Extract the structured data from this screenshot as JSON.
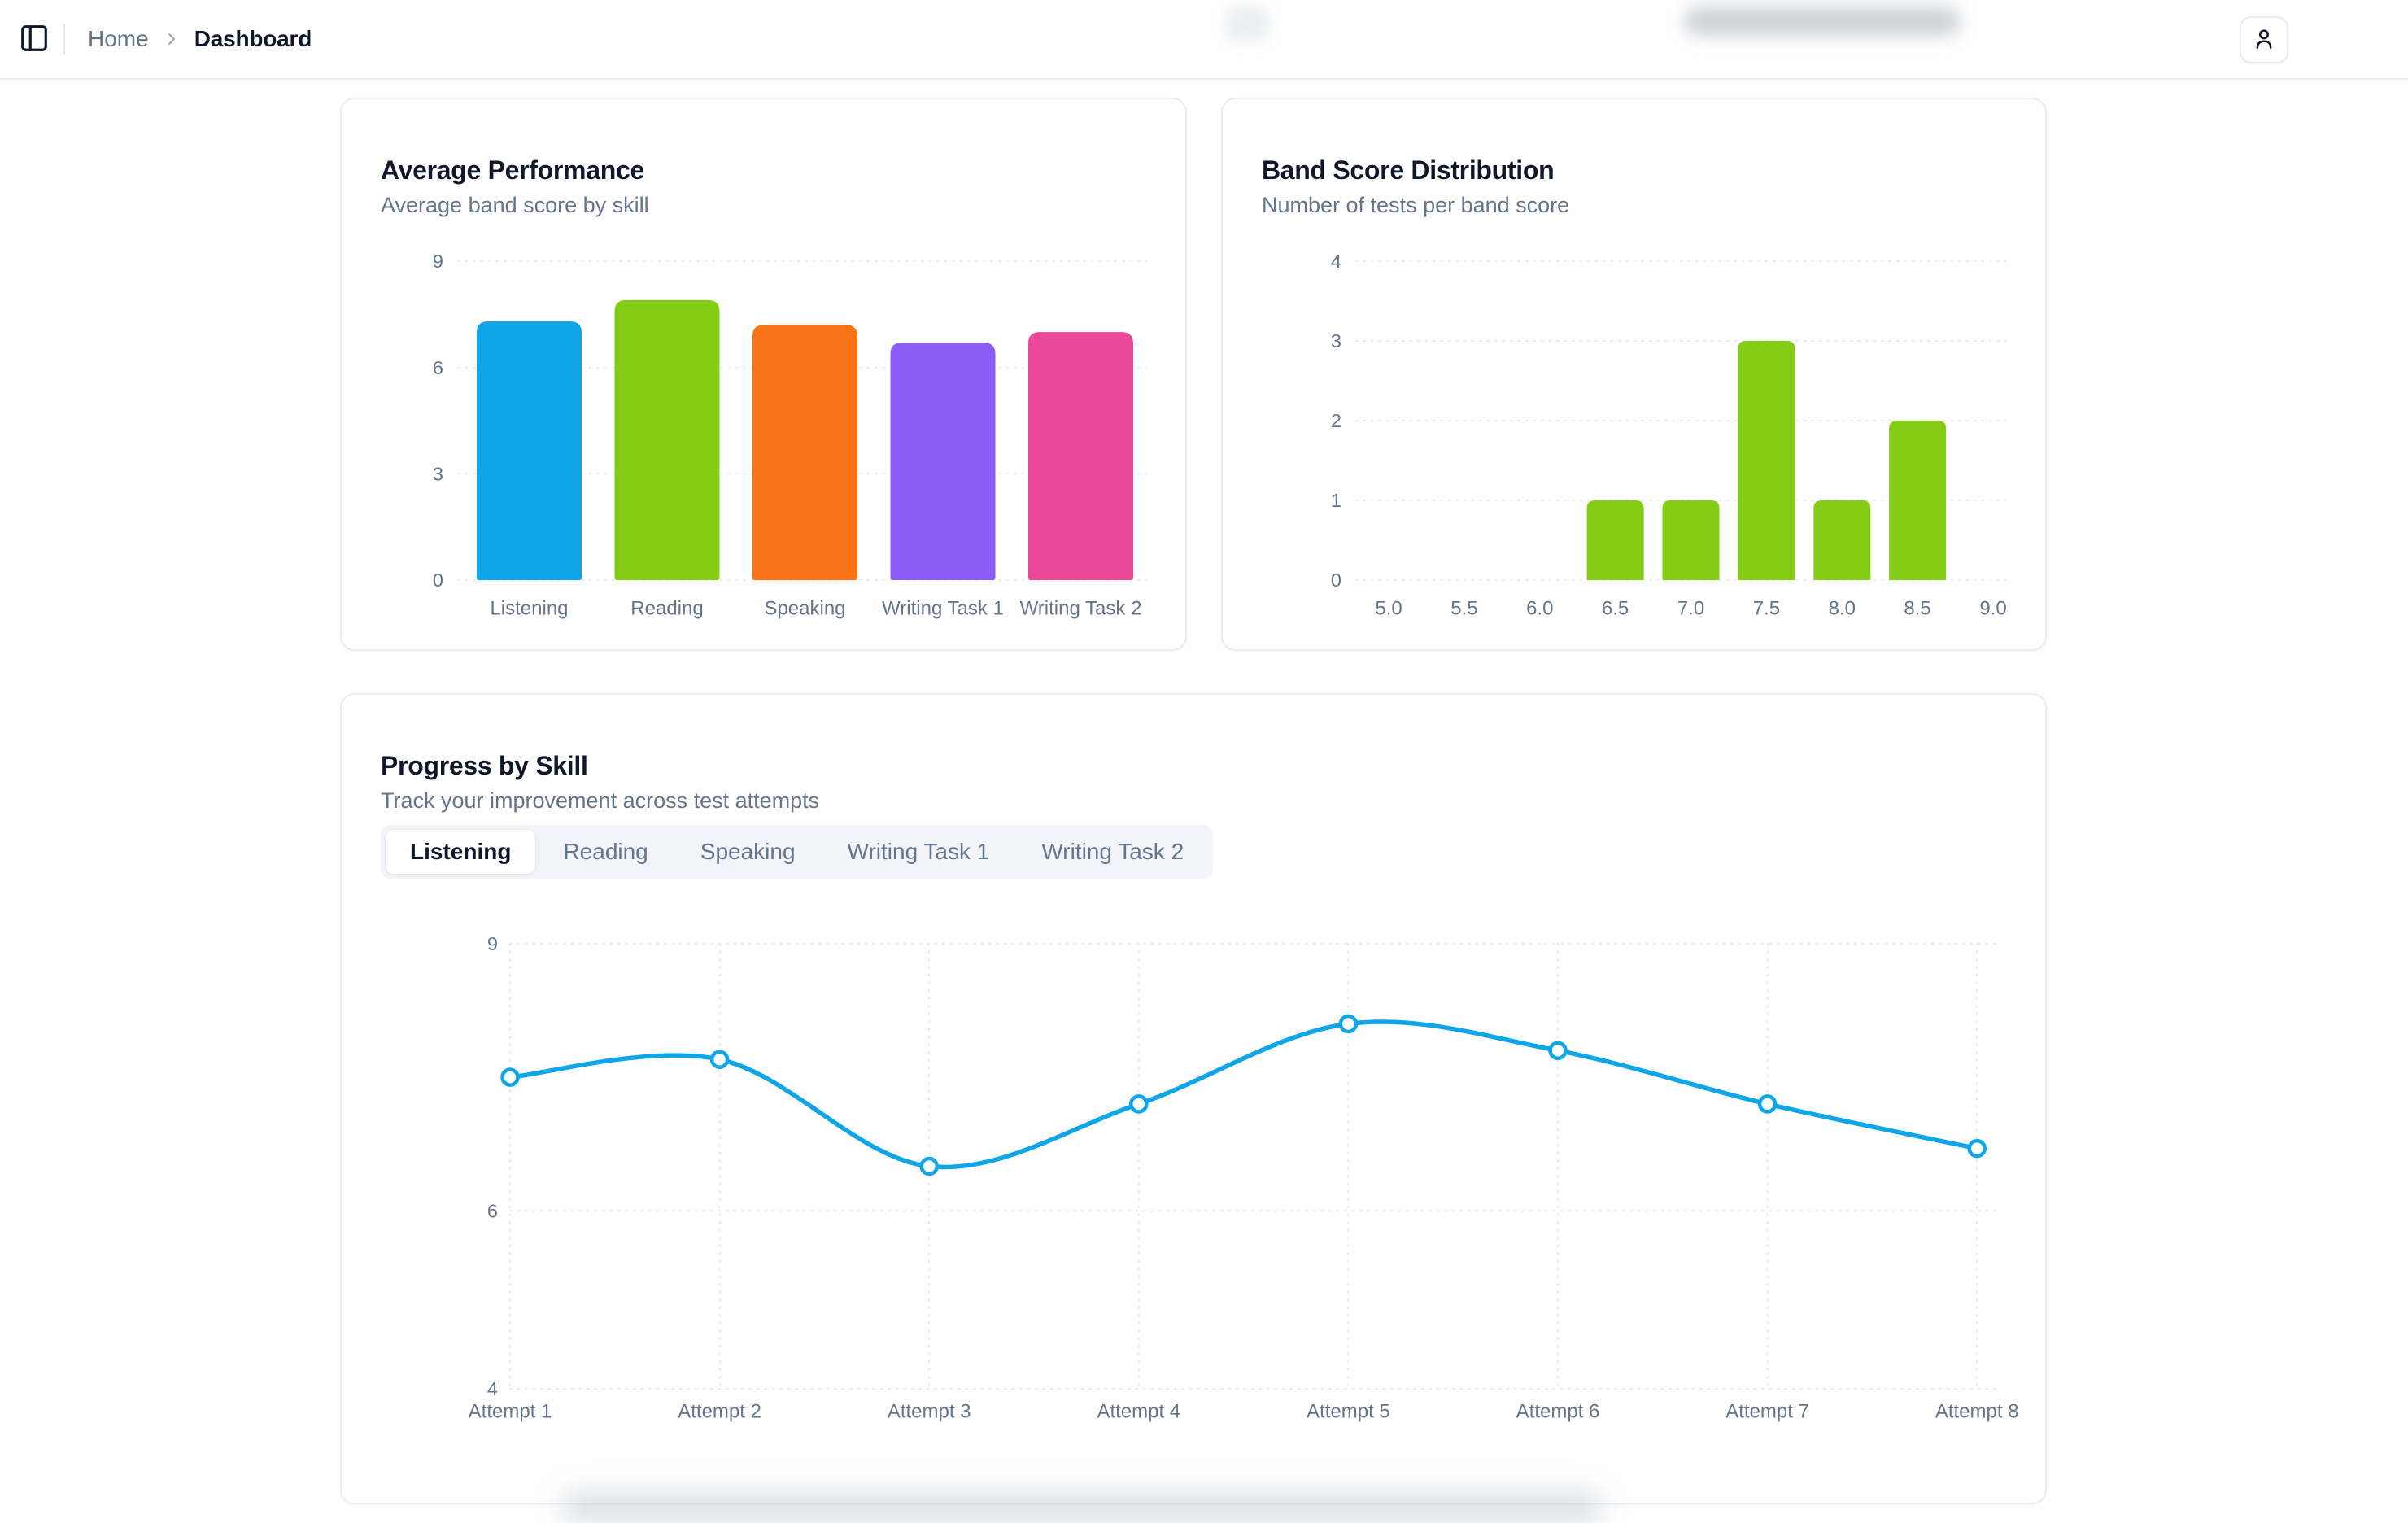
{
  "header": {
    "breadcrumb": {
      "home": "Home",
      "current": "Dashboard"
    },
    "icons": [
      "panel-left-icon",
      "chevron-right-icon",
      "user-icon"
    ]
  },
  "cards": {
    "average_performance": {
      "title": "Average Performance",
      "subtitle": "Average band score by skill"
    },
    "band_distribution": {
      "title": "Band Score Distribution",
      "subtitle": "Number of tests per band score"
    },
    "progress": {
      "title": "Progress by Skill",
      "subtitle": "Track your improvement across test attempts",
      "tabs": [
        "Listening",
        "Reading",
        "Speaking",
        "Writing Task 1",
        "Writing Task 2"
      ],
      "active_tab": "Listening"
    }
  },
  "colors": {
    "accent_blue": "#0EA5E9",
    "lime": "#84CC16",
    "orange": "#F97316",
    "violet": "#8B5CF6",
    "pink": "#EC4899",
    "axis_text": "#64748B",
    "grid": "#E8ECF3",
    "title_text": "#0F172A"
  },
  "chart_data": [
    {
      "type": "bar",
      "title": "Average Performance",
      "categories": [
        "Listening",
        "Reading",
        "Speaking",
        "Writing Task 1",
        "Writing Task 2"
      ],
      "values": [
        7.3,
        7.9,
        7.2,
        6.7,
        7.0
      ],
      "colors": [
        "#0EA5E9",
        "#84CC16",
        "#F97316",
        "#8B5CF6",
        "#EC4899"
      ],
      "xlabel": "",
      "ylabel": "",
      "ylim": [
        0,
        9
      ],
      "yticks": [
        0,
        3,
        6,
        9
      ],
      "grid": "dotted-horizontal",
      "legend": "none"
    },
    {
      "type": "bar",
      "title": "Band Score Distribution",
      "categories": [
        "5.0",
        "5.5",
        "6.0",
        "6.5",
        "7.0",
        "7.5",
        "8.0",
        "8.5",
        "9.0"
      ],
      "values": [
        0,
        0,
        0,
        1,
        1,
        3,
        1,
        2,
        0
      ],
      "colors": [
        "#84CC16"
      ],
      "xlabel": "",
      "ylabel": "",
      "ylim": [
        0,
        4
      ],
      "yticks": [
        0,
        1,
        2,
        3,
        4
      ],
      "grid": "dotted-horizontal",
      "legend": "none"
    },
    {
      "type": "line",
      "title": "Progress by Skill — Listening",
      "categories": [
        "Attempt 1",
        "Attempt 2",
        "Attempt 3",
        "Attempt 4",
        "Attempt 5",
        "Attempt 6",
        "Attempt 7",
        "Attempt 8"
      ],
      "series": [
        {
          "name": "Listening",
          "values": [
            7.5,
            7.7,
            6.5,
            7.2,
            8.1,
            7.8,
            7.2,
            6.7
          ]
        }
      ],
      "line_color": "#0EA5E9",
      "marker": "open-circle",
      "smooth": true,
      "xlabel": "",
      "ylabel": "",
      "ylim": [
        4,
        9
      ],
      "yticks": [
        4,
        6,
        9
      ],
      "grid": "dotted-horizontal-and-vertical",
      "legend": "none"
    }
  ]
}
